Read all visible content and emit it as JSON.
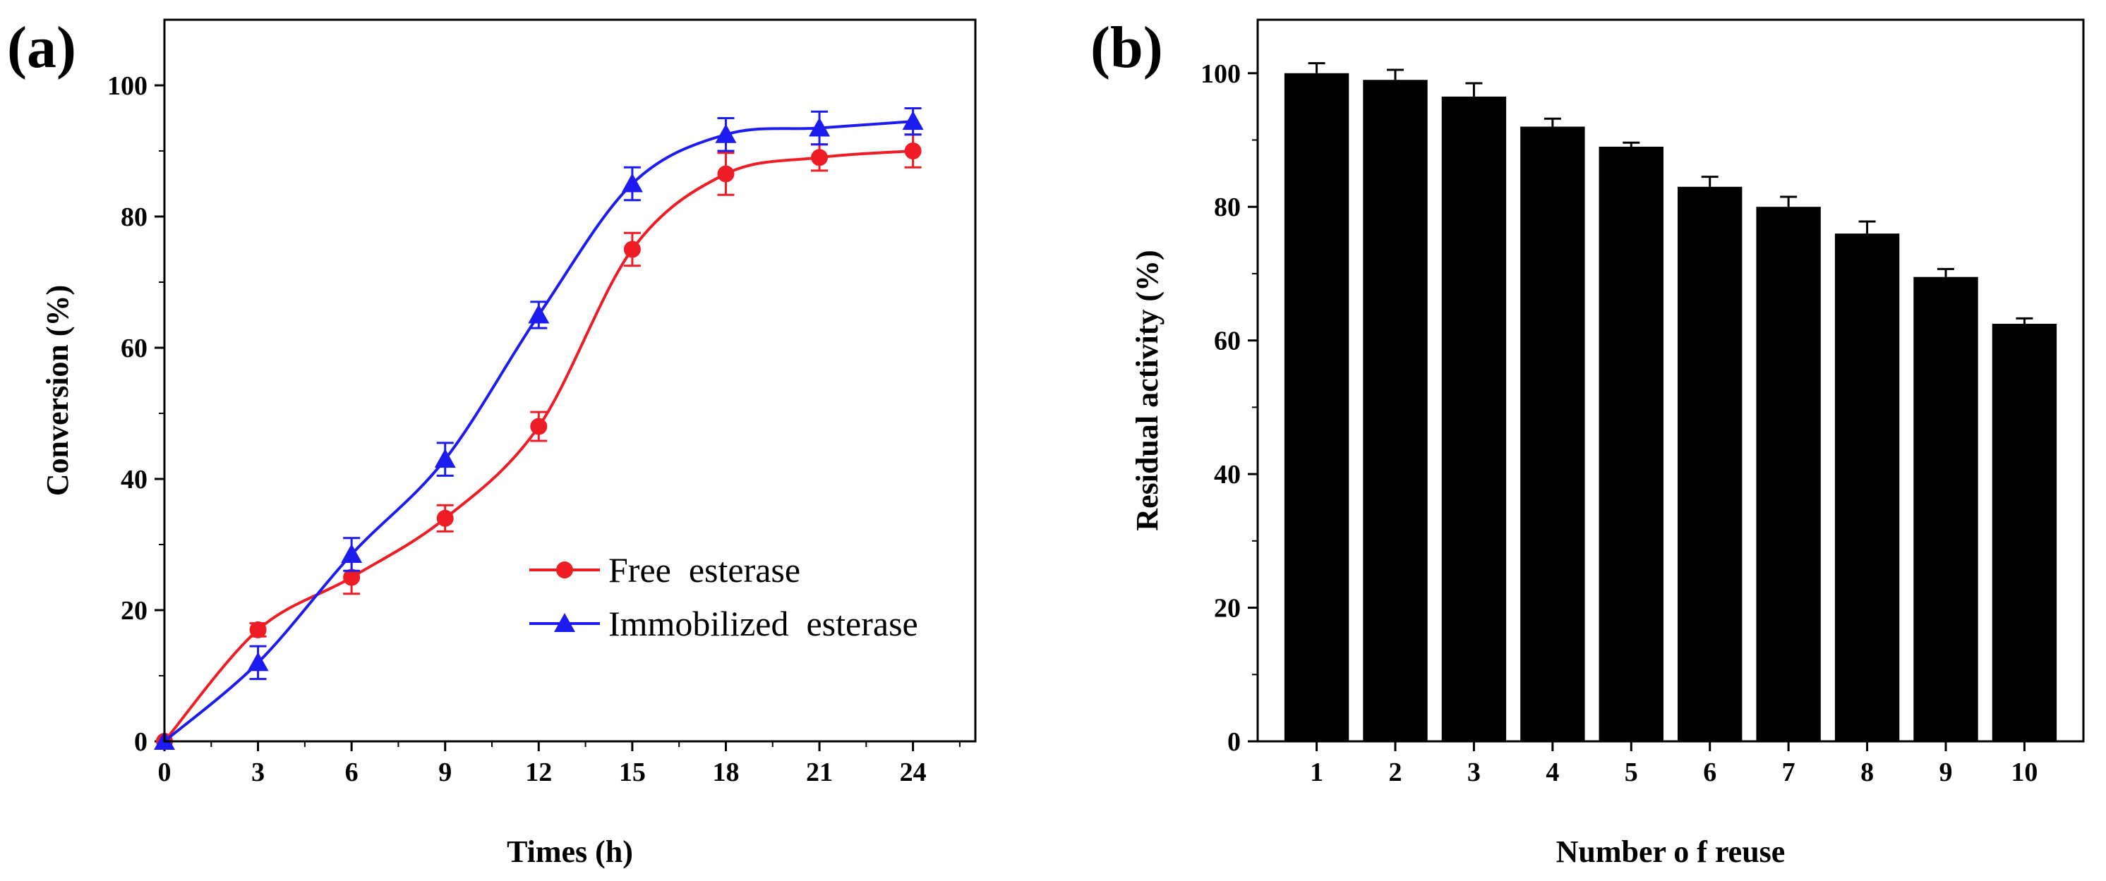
{
  "chart_data": [
    {
      "panel": "(a)",
      "type": "line",
      "title": "",
      "xlabel": "Times (h)",
      "ylabel": "Conversion (%)",
      "xlim": [
        0,
        26
      ],
      "ylim": [
        0,
        110
      ],
      "xticks": [
        0,
        3,
        6,
        9,
        12,
        15,
        18,
        21,
        24
      ],
      "yticks": [
        0,
        20,
        40,
        60,
        80,
        100
      ],
      "legend_position": "center-right",
      "series": [
        {
          "name": "Free  esterase",
          "color": "#ee1c24",
          "marker": "circle",
          "x": [
            0,
            3,
            6,
            9,
            12,
            15,
            18,
            21,
            24
          ],
          "y": [
            0,
            17,
            25,
            34,
            48,
            75,
            86.5,
            89,
            90
          ],
          "err": [
            0,
            1.0,
            2.5,
            2.0,
            2.2,
            2.5,
            3.2,
            2.0,
            2.5
          ]
        },
        {
          "name": "Immobilized  esterase",
          "color": "#1c1cf0",
          "marker": "triangle",
          "x": [
            0,
            3,
            6,
            9,
            12,
            15,
            18,
            21,
            24
          ],
          "y": [
            0,
            12,
            28.5,
            43,
            65,
            85,
            92.5,
            93.5,
            94.5
          ],
          "err": [
            0,
            2.5,
            2.5,
            2.5,
            2.0,
            2.5,
            2.5,
            2.5,
            2.0
          ]
        }
      ]
    },
    {
      "panel": "(b)",
      "type": "bar",
      "title": "",
      "xlabel": "Number o f reuse",
      "ylabel": "Residual activity (%)",
      "ylim": [
        0,
        108
      ],
      "yticks": [
        0,
        20,
        40,
        60,
        80,
        100
      ],
      "categories": [
        "1",
        "2",
        "3",
        "4",
        "5",
        "6",
        "7",
        "8",
        "9",
        "10"
      ],
      "color": "#000000",
      "values": [
        100,
        99,
        96.5,
        92,
        89,
        83,
        80,
        76,
        69.5,
        62.5
      ],
      "err": [
        1.5,
        1.5,
        2.0,
        1.2,
        0.6,
        1.5,
        1.5,
        1.8,
        1.2,
        0.8
      ]
    }
  ]
}
